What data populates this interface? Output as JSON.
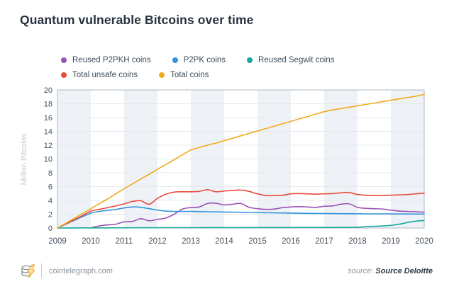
{
  "title": "Quantum vulnerable Bitcoins over time",
  "footer": {
    "site": "cointelegraph.com",
    "source_label": "source:",
    "source_value": "Source Deloitte"
  },
  "colors": {
    "title_text": "#26323e",
    "legend_text": "#3d4c5b",
    "axis_tick_text": "#46525f",
    "axis_unit_text": "#c5ccd3",
    "grid_line": "#e4e9ed",
    "plot_border": "#aeb9c4",
    "band_fill": "#eef2f6",
    "footer_text": "#8d959d",
    "logo_coin": "#8a939b",
    "logo_bolt": "#f2aa1d"
  },
  "chart_data": {
    "type": "line",
    "title": "Quantum vulnerable Bitcoins over time",
    "xlabel": "",
    "ylabel": "Million Bitcoins",
    "xlim": [
      2009,
      2020
    ],
    "ylim": [
      0,
      20
    ],
    "x_ticks": [
      2009,
      2010,
      2011,
      2012,
      2013,
      2014,
      2015,
      2016,
      2017,
      2018,
      2019,
      2020
    ],
    "y_ticks": [
      0,
      2,
      4,
      6,
      8,
      10,
      12,
      14,
      16,
      18,
      20
    ],
    "grid": true,
    "legend_position": "top",
    "shaded_year_bands": [
      2009,
      2011,
      2013,
      2015,
      2017,
      2019
    ],
    "x": [
      2009,
      2009.25,
      2009.5,
      2009.75,
      2010,
      2010.25,
      2010.5,
      2010.75,
      2011,
      2011.25,
      2011.5,
      2011.75,
      2012,
      2012.25,
      2012.5,
      2012.75,
      2013,
      2013.25,
      2013.5,
      2013.75,
      2014,
      2014.25,
      2014.5,
      2014.75,
      2015,
      2015.25,
      2015.5,
      2015.75,
      2016,
      2016.25,
      2016.5,
      2016.75,
      2017,
      2017.25,
      2017.5,
      2017.75,
      2018,
      2018.25,
      2018.5,
      2018.75,
      2019,
      2019.25,
      2019.5,
      2019.75,
      2020
    ],
    "series": [
      {
        "name": "Reused P2PKH coins",
        "color": "#9b51b5",
        "values": [
          null,
          null,
          null,
          null,
          0.02,
          0.3,
          0.45,
          0.55,
          0.9,
          0.95,
          1.35,
          1.05,
          1.25,
          1.45,
          2.0,
          2.75,
          2.95,
          3.05,
          3.55,
          3.6,
          3.35,
          3.45,
          3.55,
          3.0,
          2.8,
          2.7,
          2.75,
          2.95,
          3.05,
          3.1,
          3.05,
          3.0,
          3.15,
          3.2,
          3.45,
          3.5,
          3.0,
          2.85,
          2.8,
          2.75,
          2.6,
          2.45,
          2.4,
          2.35,
          2.3
        ]
      },
      {
        "name": "P2PK coins",
        "color": "#3493d9",
        "values": [
          0,
          0.55,
          1.1,
          1.65,
          2.15,
          2.4,
          2.55,
          2.7,
          2.9,
          3.05,
          3.0,
          2.8,
          2.6,
          2.45,
          2.4,
          2.4,
          2.4,
          2.38,
          2.36,
          2.34,
          2.32,
          2.3,
          2.28,
          2.26,
          2.24,
          2.22,
          2.2,
          2.18,
          2.16,
          2.14,
          2.12,
          2.11,
          2.1,
          2.09,
          2.08,
          2.07,
          2.06,
          2.05,
          2.05,
          2.04,
          2.04,
          2.03,
          2.03,
          2.02,
          2.02
        ]
      },
      {
        "name": "Reused Segwit coins",
        "color": "#16a79c",
        "values": [
          0,
          0.01,
          0.01,
          0.02,
          0.02,
          0.02,
          0.02,
          0.03,
          0.03,
          0.03,
          0.04,
          0.04,
          0.04,
          0.05,
          0.05,
          0.05,
          0.05,
          0.05,
          0.06,
          0.06,
          0.06,
          0.06,
          0.06,
          0.07,
          0.07,
          0.07,
          0.07,
          0.07,
          0.07,
          0.08,
          0.08,
          0.08,
          0.08,
          0.08,
          0.09,
          0.09,
          0.12,
          0.2,
          0.25,
          0.3,
          0.38,
          0.55,
          0.8,
          1.0,
          1.08
        ]
      },
      {
        "name": "Total unsafe coins",
        "color": "#ea4b3e",
        "values": [
          0,
          0.6,
          1.2,
          1.8,
          2.45,
          2.7,
          2.95,
          3.2,
          3.5,
          3.85,
          3.95,
          3.45,
          4.3,
          4.9,
          5.2,
          5.25,
          5.25,
          5.3,
          5.55,
          5.25,
          5.35,
          5.45,
          5.5,
          5.3,
          4.95,
          4.7,
          4.7,
          4.75,
          4.95,
          5.0,
          4.95,
          4.9,
          4.95,
          5.0,
          5.1,
          5.15,
          4.85,
          4.75,
          4.7,
          4.7,
          4.75,
          4.8,
          4.85,
          4.95,
          5.05
        ]
      },
      {
        "name": "Total coins",
        "color": "#f2aa1d",
        "values": [
          0,
          0.7,
          1.4,
          2.1,
          2.8,
          3.5,
          4.2,
          4.95,
          5.7,
          6.4,
          7.1,
          7.8,
          8.5,
          9.2,
          9.9,
          10.6,
          11.3,
          11.65,
          12.0,
          12.3,
          12.65,
          13.0,
          13.35,
          13.7,
          14.05,
          14.4,
          14.75,
          15.1,
          15.45,
          15.8,
          16.15,
          16.5,
          16.85,
          17.1,
          17.3,
          17.5,
          17.7,
          17.9,
          18.1,
          18.3,
          18.5,
          18.7,
          18.9,
          19.1,
          19.35
        ]
      }
    ]
  }
}
